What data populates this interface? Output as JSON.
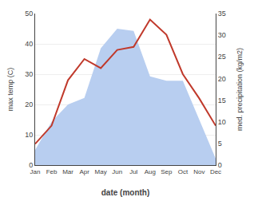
{
  "chart_data": {
    "type": "line",
    "xlabel": "date (month)",
    "ylabel": "max temp (C)",
    "y2label": "med. precipitation (kg/m2)",
    "categories": [
      "Jan",
      "Feb",
      "Mar",
      "Apr",
      "May",
      "Jun",
      "Jul",
      "Aug",
      "Sep",
      "Oct",
      "Nov",
      "Dec"
    ],
    "series": [
      {
        "type": "area",
        "color": "#b8cef0",
        "axis": "y2",
        "values": [
          3.5,
          10,
          14,
          15.5,
          27,
          31.5,
          31,
          20.5,
          19.5,
          19.5,
          10.5,
          1.5
        ]
      },
      {
        "type": "line",
        "color": "#c0392b",
        "values": [
          7,
          13,
          28,
          35,
          32,
          38,
          39,
          48,
          43,
          30,
          22,
          13
        ]
      }
    ],
    "ylim": [
      0,
      50
    ],
    "yticks": [
      0,
      10,
      20,
      30,
      40,
      50
    ],
    "y2lim": [
      0,
      35
    ],
    "y2ticks": [
      0,
      5,
      10,
      15,
      20,
      25,
      30,
      35
    ],
    "grid": true
  }
}
